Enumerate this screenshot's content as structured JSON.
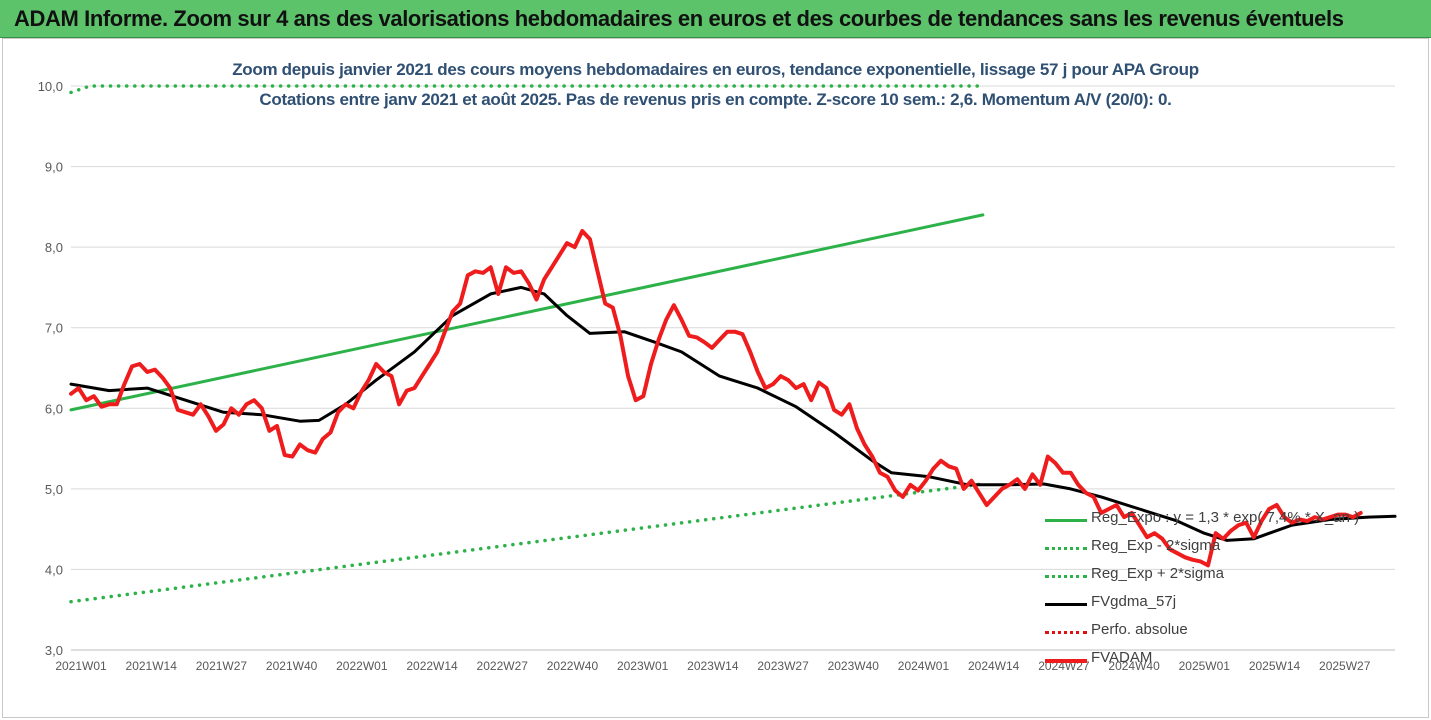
{
  "header": {
    "title": "ADAM Informe. Zoom sur 4 ans des valorisations hebdomadaires en euros et des courbes de tendances sans les revenus éventuels"
  },
  "chart_data": {
    "type": "line",
    "title": "Zoom depuis janvier 2021 des cours moyens hebdomadaires en euros, tendance exponentielle, lissage 57 j pour APA Group",
    "subtitle": "Cotations entre janv 2021 et août 2025.  Pas de revenus pris en compte. Z-score 10 sem.: 2,6. Momentum A/V (20/0): 0.",
    "ylim": [
      3.0,
      10.0
    ],
    "y_ticks": [
      "3,0",
      "4,0",
      "5,0",
      "6,0",
      "7,0",
      "8,0",
      "9,0",
      "10,0"
    ],
    "x_ticks": [
      "2021W01",
      "2021W14",
      "2021W27",
      "2021W40",
      "2022W01",
      "2022W14",
      "2022W27",
      "2022W40",
      "2023W01",
      "2023W14",
      "2023W27",
      "2023W40",
      "2024W01",
      "2024W14",
      "2024W27",
      "2024W40",
      "2025W01",
      "2025W14",
      "2025W27"
    ],
    "x_index_range": [
      0,
      239
    ],
    "grid": "horizontal",
    "legend_position": "bottom-right",
    "series": [
      {
        "name": "Reg_Expo : y = 1,3 * exp( 7,4% * X_an )",
        "color": "#2db24a",
        "style": "solid",
        "points": [
          [
            0,
            5.98
          ],
          [
            239,
            8.4
          ]
        ]
      },
      {
        "name": "Reg_Exp - 2*sigma",
        "color": "#2db24a",
        "style": "dotted",
        "points": [
          [
            0,
            3.6
          ],
          [
            239,
            5.06
          ]
        ]
      },
      {
        "name": "Reg_Exp + 2*sigma",
        "color": "#2db24a",
        "style": "dotted",
        "points": [
          [
            0,
            9.92
          ],
          [
            5,
            10.0
          ],
          [
            239,
            10.0
          ]
        ]
      },
      {
        "name": "FVgdma_57j",
        "color": "#000000",
        "style": "solid",
        "points": [
          [
            0,
            6.3
          ],
          [
            10,
            6.22
          ],
          [
            20,
            6.25
          ],
          [
            30,
            6.1
          ],
          [
            40,
            5.95
          ],
          [
            50,
            5.92
          ],
          [
            60,
            5.84
          ],
          [
            65,
            5.85
          ],
          [
            72,
            6.05
          ],
          [
            80,
            6.35
          ],
          [
            90,
            6.7
          ],
          [
            100,
            7.15
          ],
          [
            110,
            7.42
          ],
          [
            118,
            7.5
          ],
          [
            124,
            7.42
          ],
          [
            130,
            7.15
          ],
          [
            136,
            6.93
          ],
          [
            145,
            6.95
          ],
          [
            153,
            6.82
          ],
          [
            160,
            6.7
          ],
          [
            170,
            6.4
          ],
          [
            180,
            6.25
          ],
          [
            190,
            6.02
          ],
          [
            200,
            5.7
          ],
          [
            210,
            5.35
          ],
          [
            215,
            5.2
          ],
          [
            225,
            5.15
          ],
          [
            235,
            5.05
          ],
          [
            245,
            5.05
          ],
          [
            255,
            5.06
          ],
          [
            262,
            5.0
          ],
          [
            270,
            4.9
          ],
          [
            280,
            4.75
          ],
          [
            290,
            4.6
          ],
          [
            297,
            4.45
          ],
          [
            303,
            4.36
          ],
          [
            310,
            4.38
          ],
          [
            320,
            4.55
          ],
          [
            330,
            4.62
          ],
          [
            340,
            4.65
          ],
          [
            347,
            4.66
          ]
        ]
      },
      {
        "name": "Perfo. absolue",
        "color": "#e01010",
        "style": "dotted",
        "points": []
      },
      {
        "name": "FVADAM",
        "color": "#ee1c1c",
        "style": "solid",
        "points": [
          [
            0,
            6.18
          ],
          [
            2,
            6.25
          ],
          [
            4,
            6.1
          ],
          [
            6,
            6.15
          ],
          [
            8,
            6.02
          ],
          [
            10,
            6.05
          ],
          [
            12,
            6.05
          ],
          [
            14,
            6.3
          ],
          [
            16,
            6.52
          ],
          [
            18,
            6.55
          ],
          [
            20,
            6.45
          ],
          [
            22,
            6.48
          ],
          [
            24,
            6.38
          ],
          [
            26,
            6.25
          ],
          [
            28,
            5.98
          ],
          [
            30,
            5.95
          ],
          [
            32,
            5.92
          ],
          [
            34,
            6.05
          ],
          [
            36,
            5.9
          ],
          [
            38,
            5.72
          ],
          [
            40,
            5.8
          ],
          [
            42,
            6.0
          ],
          [
            44,
            5.92
          ],
          [
            46,
            6.05
          ],
          [
            48,
            6.1
          ],
          [
            50,
            6.0
          ],
          [
            52,
            5.72
          ],
          [
            54,
            5.78
          ],
          [
            56,
            5.42
          ],
          [
            58,
            5.4
          ],
          [
            60,
            5.55
          ],
          [
            62,
            5.48
          ],
          [
            64,
            5.45
          ],
          [
            66,
            5.62
          ],
          [
            68,
            5.7
          ],
          [
            70,
            5.95
          ],
          [
            72,
            6.05
          ],
          [
            74,
            6.0
          ],
          [
            76,
            6.2
          ],
          [
            78,
            6.35
          ],
          [
            80,
            6.55
          ],
          [
            82,
            6.45
          ],
          [
            84,
            6.4
          ],
          [
            86,
            6.05
          ],
          [
            88,
            6.22
          ],
          [
            90,
            6.25
          ],
          [
            92,
            6.4
          ],
          [
            94,
            6.55
          ],
          [
            96,
            6.7
          ],
          [
            98,
            6.95
          ],
          [
            100,
            7.2
          ],
          [
            102,
            7.3
          ],
          [
            104,
            7.65
          ],
          [
            106,
            7.7
          ],
          [
            108,
            7.68
          ],
          [
            110,
            7.75
          ],
          [
            112,
            7.42
          ],
          [
            114,
            7.75
          ],
          [
            116,
            7.68
          ],
          [
            118,
            7.7
          ],
          [
            120,
            7.55
          ],
          [
            122,
            7.35
          ],
          [
            124,
            7.6
          ],
          [
            126,
            7.75
          ],
          [
            128,
            7.9
          ],
          [
            130,
            8.05
          ],
          [
            132,
            8.0
          ],
          [
            134,
            8.2
          ],
          [
            136,
            8.1
          ],
          [
            138,
            7.7
          ],
          [
            140,
            7.3
          ],
          [
            142,
            7.25
          ],
          [
            144,
            6.9
          ],
          [
            146,
            6.4
          ],
          [
            148,
            6.1
          ],
          [
            150,
            6.15
          ],
          [
            152,
            6.55
          ],
          [
            154,
            6.85
          ],
          [
            156,
            7.1
          ],
          [
            158,
            7.28
          ],
          [
            160,
            7.1
          ],
          [
            162,
            6.9
          ],
          [
            164,
            6.88
          ],
          [
            166,
            6.82
          ],
          [
            168,
            6.75
          ],
          [
            170,
            6.85
          ],
          [
            172,
            6.95
          ],
          [
            174,
            6.95
          ],
          [
            176,
            6.92
          ],
          [
            178,
            6.7
          ],
          [
            180,
            6.45
          ],
          [
            182,
            6.25
          ],
          [
            184,
            6.3
          ],
          [
            186,
            6.4
          ],
          [
            188,
            6.35
          ],
          [
            190,
            6.25
          ],
          [
            192,
            6.3
          ],
          [
            194,
            6.1
          ],
          [
            196,
            6.32
          ],
          [
            198,
            6.25
          ],
          [
            200,
            5.98
          ],
          [
            202,
            5.92
          ],
          [
            204,
            6.05
          ],
          [
            206,
            5.75
          ],
          [
            208,
            5.55
          ],
          [
            210,
            5.4
          ],
          [
            212,
            5.2
          ],
          [
            214,
            5.15
          ],
          [
            216,
            4.98
          ],
          [
            218,
            4.9
          ],
          [
            220,
            5.05
          ],
          [
            222,
            4.98
          ],
          [
            224,
            5.1
          ],
          [
            226,
            5.25
          ],
          [
            228,
            5.35
          ],
          [
            230,
            5.28
          ],
          [
            232,
            5.25
          ],
          [
            234,
            5.0
          ],
          [
            236,
            5.1
          ],
          [
            238,
            4.95
          ],
          [
            240,
            4.8
          ],
          [
            242,
            4.9
          ],
          [
            244,
            5.0
          ],
          [
            246,
            5.05
          ],
          [
            248,
            5.12
          ],
          [
            250,
            5.0
          ],
          [
            252,
            5.18
          ],
          [
            254,
            5.05
          ],
          [
            256,
            5.4
          ],
          [
            258,
            5.32
          ],
          [
            260,
            5.2
          ],
          [
            262,
            5.2
          ],
          [
            264,
            5.05
          ],
          [
            266,
            4.95
          ],
          [
            268,
            4.9
          ],
          [
            270,
            4.7
          ],
          [
            272,
            4.75
          ],
          [
            274,
            4.8
          ],
          [
            276,
            4.65
          ],
          [
            278,
            4.7
          ],
          [
            280,
            4.55
          ],
          [
            282,
            4.4
          ],
          [
            284,
            4.45
          ],
          [
            286,
            4.38
          ],
          [
            288,
            4.25
          ],
          [
            290,
            4.2
          ],
          [
            292,
            4.15
          ],
          [
            294,
            4.12
          ],
          [
            296,
            4.1
          ],
          [
            298,
            4.05
          ],
          [
            300,
            4.45
          ],
          [
            302,
            4.38
          ],
          [
            304,
            4.48
          ],
          [
            306,
            4.55
          ],
          [
            308,
            4.58
          ],
          [
            310,
            4.4
          ],
          [
            312,
            4.6
          ],
          [
            314,
            4.75
          ],
          [
            316,
            4.8
          ],
          [
            318,
            4.65
          ],
          [
            320,
            4.58
          ],
          [
            322,
            4.62
          ],
          [
            324,
            4.6
          ],
          [
            326,
            4.65
          ],
          [
            328,
            4.62
          ],
          [
            330,
            4.65
          ],
          [
            332,
            4.68
          ],
          [
            334,
            4.68
          ],
          [
            336,
            4.65
          ],
          [
            338,
            4.7
          ]
        ]
      }
    ]
  }
}
